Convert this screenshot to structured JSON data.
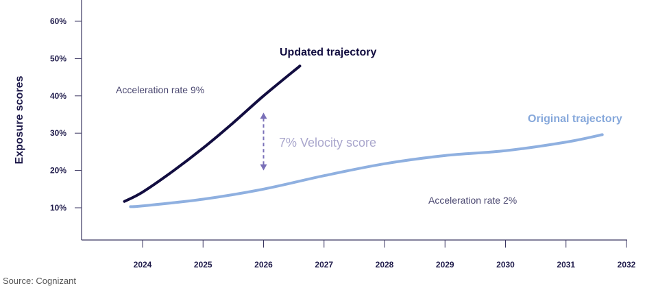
{
  "chart_data": {
    "type": "line",
    "title": "",
    "xlabel": "",
    "ylabel": "Exposure scores",
    "xlim": [
      2023,
      2032
    ],
    "ylim": [
      0,
      65
    ],
    "x_ticks": [
      "2024",
      "2025",
      "2026",
      "2027",
      "2028",
      "2029",
      "2030",
      "2031",
      "2032"
    ],
    "y_ticks": [
      {
        "value": 10,
        "label": "10%"
      },
      {
        "value": 20,
        "label": "20%"
      },
      {
        "value": 30,
        "label": "30%"
      },
      {
        "value": 40,
        "label": "40%"
      },
      {
        "value": 50,
        "label": "50%"
      },
      {
        "value": 60,
        "label": "60%"
      }
    ],
    "grid": false,
    "series": [
      {
        "name": "Updated trajectory",
        "color": "#120d40",
        "x": [
          2023.7,
          2024,
          2024.5,
          2025,
          2025.5,
          2026,
          2026.6
        ],
        "y": [
          11.7,
          14.2,
          19.8,
          26,
          32.8,
          40,
          48
        ]
      },
      {
        "name": "Original trajectory",
        "color": "#8fb0e0",
        "x": [
          2023.8,
          2024,
          2025,
          2026,
          2027,
          2028,
          2029,
          2030,
          2031,
          2031.6
        ],
        "y": [
          10.3,
          10.5,
          12.3,
          15,
          18.6,
          21.8,
          24,
          25.3,
          27.6,
          29.6
        ]
      }
    ],
    "annotations": [
      {
        "text": "Acceleration rate 9%"
      },
      {
        "text": "Acceleration rate 2%"
      },
      {
        "text": "7% Velocity score",
        "x": 2026,
        "from": 20,
        "to": 35.5
      }
    ],
    "source": "Source: Cognizant"
  }
}
